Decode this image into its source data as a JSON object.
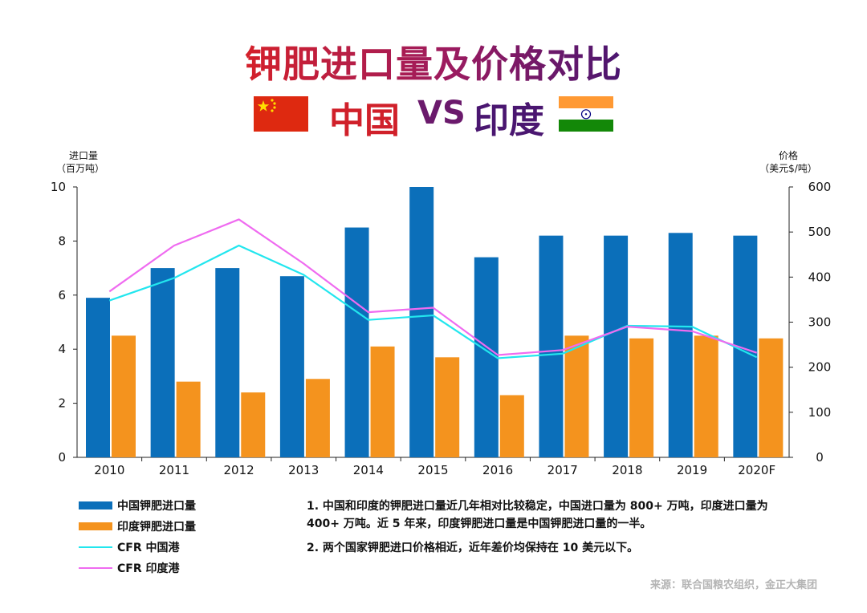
{
  "title": "钾肥进口量及价格对比",
  "subtitle": {
    "left": "中国",
    "vs": "VS",
    "right": "印度"
  },
  "colors": {
    "china_bar": "#0b6fba",
    "india_bar": "#f4931e",
    "china_line": "#22e6ee",
    "india_line": "#ef6bf0"
  },
  "chart_data": {
    "type": "bar",
    "categories": [
      "2010",
      "2011",
      "2012",
      "2013",
      "2014",
      "2015",
      "2016",
      "2017",
      "2018",
      "2019",
      "2020F"
    ],
    "left_axis": {
      "label_line1": "进口量",
      "label_line2": "（百万吨）",
      "ylim": [
        0,
        10
      ],
      "ticks": [
        "0",
        "2",
        "4",
        "6",
        "8",
        "10"
      ]
    },
    "right_axis": {
      "label_line1": "价格",
      "label_line2": "（美元$/吨）",
      "ylim": [
        0,
        600
      ],
      "ticks": [
        "0",
        "100",
        "200",
        "300",
        "400",
        "500",
        "600"
      ]
    },
    "series": [
      {
        "name": "中国钾肥进口量",
        "kind": "bar",
        "axis": "left",
        "values": [
          5.9,
          7.0,
          7.0,
          6.7,
          8.5,
          10.0,
          7.4,
          8.2,
          8.2,
          8.3,
          8.2
        ]
      },
      {
        "name": "印度钾肥进口量",
        "kind": "bar",
        "axis": "left",
        "values": [
          4.5,
          2.8,
          2.4,
          2.9,
          4.1,
          3.7,
          2.3,
          4.5,
          4.4,
          4.5,
          4.4
        ]
      },
      {
        "name": "CFR 中国港",
        "kind": "line",
        "axis": "right",
        "values": [
          348,
          398,
          470,
          405,
          305,
          315,
          220,
          230,
          292,
          290,
          222
        ]
      },
      {
        "name": "CFR 印度港",
        "kind": "line",
        "axis": "right",
        "values": [
          368,
          470,
          528,
          430,
          322,
          332,
          227,
          238,
          290,
          280,
          232
        ]
      }
    ]
  },
  "notes": [
    "1. 中国和印度的钾肥进口量近几年相对比较稳定，中国进口量为 800+ 万吨，印度进口量为 400+ 万吨。近 5 年来，印度钾肥进口量是中国钾肥进口量的一半。",
    "2. 两个国家钾肥进口价格相近，近年差价均保持在 10 美元以下。"
  ],
  "source": "来源：联合国粮农组织，金正大集团"
}
